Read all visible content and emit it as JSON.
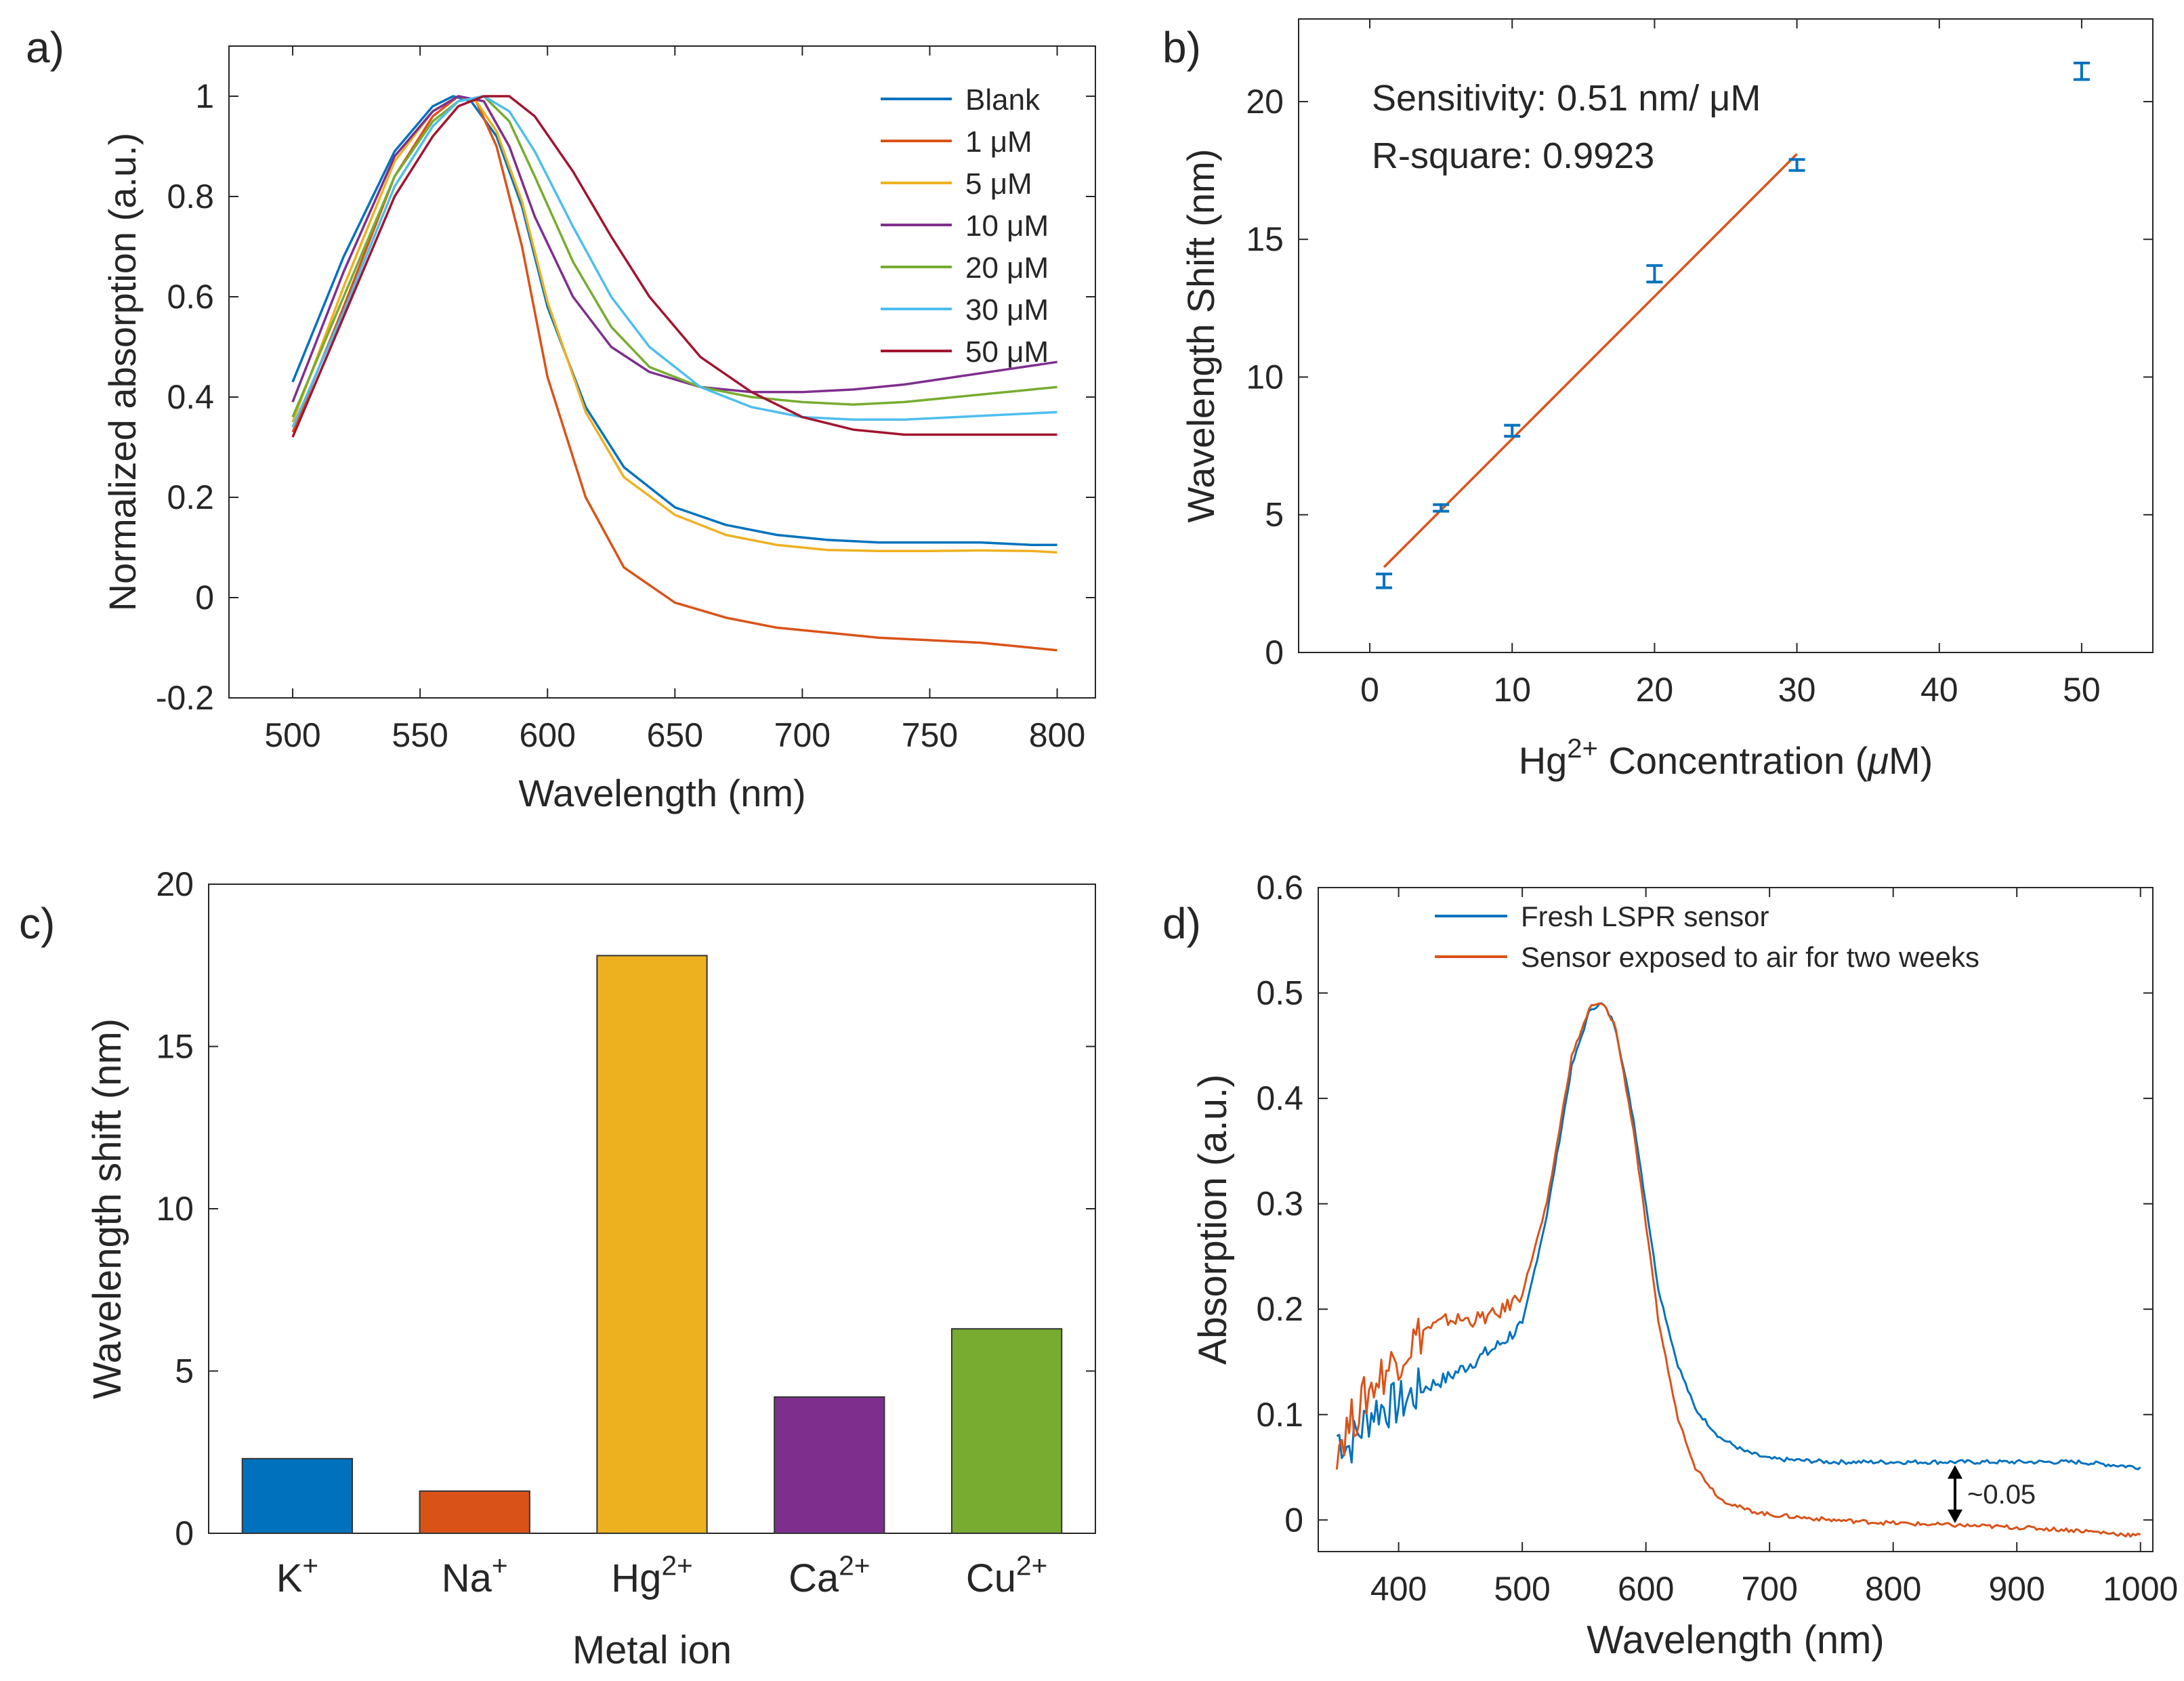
{
  "chart_data": [
    {
      "panel": "a)",
      "type": "line",
      "xlabel": "Wavelength (nm)",
      "ylabel": "Normalized absorption (a.u.)",
      "xlim": [
        475,
        815
      ],
      "ylim": [
        -0.2,
        1.1
      ],
      "xticks": [
        500,
        550,
        600,
        650,
        700,
        750,
        800
      ],
      "yticks": [
        -0.2,
        0,
        0.2,
        0.4,
        0.6,
        0.8,
        1
      ],
      "ytick_labels": [
        "-0.2",
        "0",
        "0.2",
        "0.4",
        "0.6",
        "0.8",
        "1"
      ],
      "grid": false,
      "legend": "top-right",
      "series": [
        {
          "name": "Blank",
          "color": "#0072BD",
          "x": [
            500,
            520,
            540,
            555,
            563,
            570,
            580,
            590,
            600,
            615,
            630,
            650,
            670,
            690,
            710,
            730,
            750,
            770,
            790,
            800
          ],
          "y": [
            0.43,
            0.68,
            0.89,
            0.98,
            1.0,
            0.99,
            0.92,
            0.78,
            0.58,
            0.38,
            0.26,
            0.18,
            0.145,
            0.125,
            0.115,
            0.11,
            0.11,
            0.11,
            0.105,
            0.105
          ]
        },
        {
          "name": "1 μM",
          "color": "#D95319",
          "x": [
            500,
            520,
            540,
            555,
            565,
            572,
            580,
            590,
            600,
            615,
            630,
            650,
            670,
            690,
            710,
            730,
            750,
            770,
            790,
            800
          ],
          "y": [
            0.33,
            0.58,
            0.84,
            0.96,
            1.0,
            0.99,
            0.9,
            0.7,
            0.44,
            0.2,
            0.06,
            -0.01,
            -0.04,
            -0.06,
            -0.07,
            -0.08,
            -0.085,
            -0.09,
            -0.1,
            -0.105
          ]
        },
        {
          "name": "5 μM",
          "color": "#EDB120",
          "x": [
            500,
            520,
            540,
            555,
            565,
            572,
            580,
            590,
            600,
            615,
            630,
            650,
            670,
            690,
            710,
            730,
            750,
            770,
            790,
            800
          ],
          "y": [
            0.35,
            0.62,
            0.87,
            0.97,
            1.0,
            0.99,
            0.93,
            0.79,
            0.59,
            0.37,
            0.24,
            0.165,
            0.125,
            0.105,
            0.095,
            0.093,
            0.093,
            0.094,
            0.093,
            0.09
          ]
        },
        {
          "name": "10 μM",
          "color": "#7E2F8E",
          "x": [
            500,
            520,
            540,
            555,
            565,
            575,
            585,
            595,
            610,
            625,
            640,
            660,
            680,
            700,
            720,
            740,
            760,
            780,
            800
          ],
          "y": [
            0.39,
            0.65,
            0.88,
            0.97,
            1.0,
            0.99,
            0.9,
            0.76,
            0.6,
            0.5,
            0.45,
            0.42,
            0.41,
            0.41,
            0.415,
            0.425,
            0.44,
            0.455,
            0.47
          ]
        },
        {
          "name": "20 μM",
          "color": "#77AC30",
          "x": [
            500,
            520,
            540,
            555,
            565,
            575,
            585,
            595,
            610,
            625,
            640,
            660,
            680,
            700,
            720,
            740,
            760,
            780,
            800
          ],
          "y": [
            0.36,
            0.6,
            0.84,
            0.95,
            0.99,
            1.0,
            0.95,
            0.84,
            0.67,
            0.54,
            0.46,
            0.42,
            0.4,
            0.39,
            0.385,
            0.39,
            0.4,
            0.41,
            0.42
          ]
        },
        {
          "name": "30 μM",
          "color": "#4DBEEE",
          "x": [
            500,
            520,
            540,
            555,
            565,
            575,
            585,
            595,
            610,
            625,
            640,
            660,
            680,
            700,
            720,
            740,
            760,
            780,
            800
          ],
          "y": [
            0.34,
            0.57,
            0.82,
            0.94,
            0.99,
            1.0,
            0.97,
            0.89,
            0.74,
            0.6,
            0.5,
            0.42,
            0.38,
            0.36,
            0.355,
            0.355,
            0.36,
            0.365,
            0.37
          ]
        },
        {
          "name": "50 μM",
          "color": "#A2142F",
          "x": [
            500,
            520,
            540,
            555,
            565,
            575,
            585,
            595,
            610,
            625,
            640,
            660,
            680,
            700,
            720,
            740,
            760,
            780,
            800
          ],
          "y": [
            0.32,
            0.56,
            0.8,
            0.92,
            0.98,
            1.0,
            1.0,
            0.96,
            0.85,
            0.72,
            0.6,
            0.48,
            0.41,
            0.36,
            0.335,
            0.325,
            0.325,
            0.325,
            0.325
          ]
        }
      ]
    },
    {
      "panel": "b)",
      "type": "scatter",
      "xlabel_parts": [
        "Hg",
        "2+",
        " Concentration (",
        "μ",
        "M)"
      ],
      "ylabel": "Wavelength Shift (nm)",
      "xlim": [
        -5,
        55
      ],
      "ylim": [
        0,
        23
      ],
      "xticks": [
        0,
        10,
        20,
        30,
        40,
        50
      ],
      "yticks": [
        0,
        5,
        10,
        15,
        20
      ],
      "grid": false,
      "annotations": [
        "Sensitivity: 0.51 nm/ μM",
        "R-square: 0.9923"
      ],
      "points": [
        {
          "x": 1,
          "y": 2.6,
          "err": 0.25
        },
        {
          "x": 5,
          "y": 5.25,
          "err": 0.12
        },
        {
          "x": 10,
          "y": 8.05,
          "err": 0.2
        },
        {
          "x": 20,
          "y": 13.75,
          "err": 0.3
        },
        {
          "x": 30,
          "y": 17.7,
          "err": 0.2
        },
        {
          "x": 50,
          "y": 21.1,
          "err": 0.3
        }
      ],
      "point_color": "#0072BD",
      "fit": {
        "x": [
          1,
          30
        ],
        "y": [
          3.1,
          18.1
        ],
        "color": "#D95319"
      }
    },
    {
      "panel": "c)",
      "type": "bar",
      "xlabel": "Metal ion",
      "ylabel": "Wavelength shift (nm)",
      "ylim": [
        0,
        20
      ],
      "yticks": [
        0,
        5,
        10,
        15,
        20
      ],
      "categories": [
        {
          "base": "K",
          "sup": "+"
        },
        {
          "base": "Na",
          "sup": "+"
        },
        {
          "base": "Hg",
          "sup": "2+"
        },
        {
          "base": "Ca",
          "sup": "2+"
        },
        {
          "base": "Cu",
          "sup": "2+"
        }
      ],
      "values": [
        2.3,
        1.3,
        17.8,
        4.2,
        6.3
      ],
      "colors": [
        "#0072BD",
        "#D95319",
        "#EDB120",
        "#7E2F8E",
        "#77AC30"
      ]
    },
    {
      "panel": "d)",
      "type": "line",
      "xlabel": "Wavelength (nm)",
      "ylabel": "Absorption (a.u.)",
      "xlim": [
        335,
        1010
      ],
      "ylim": [
        -0.03,
        0.6
      ],
      "xticks": [
        400,
        500,
        600,
        700,
        800,
        900,
        1000
      ],
      "yticks": [
        0,
        0.1,
        0.2,
        0.3,
        0.4,
        0.5,
        0.6
      ],
      "legend": "top-left",
      "annotation": "~0.05",
      "series": [
        {
          "name": "Fresh LSPR sensor",
          "color": "#0072BD",
          "x": [
            350,
            360,
            380,
            400,
            420,
            440,
            460,
            480,
            500,
            520,
            540,
            555,
            565,
            575,
            590,
            600,
            610,
            625,
            640,
            660,
            680,
            700,
            750,
            800,
            850,
            900,
            950,
            1000
          ],
          "y": [
            0.08,
            0.07,
            0.105,
            0.11,
            0.125,
            0.135,
            0.15,
            0.165,
            0.185,
            0.29,
            0.43,
            0.485,
            0.49,
            0.47,
            0.38,
            0.3,
            0.22,
            0.15,
            0.105,
            0.078,
            0.065,
            0.058,
            0.055,
            0.055,
            0.055,
            0.055,
            0.055,
            0.05
          ]
        },
        {
          "name": "Sensor exposed to air for two weeks",
          "color": "#D95319",
          "x": [
            350,
            360,
            380,
            400,
            420,
            440,
            460,
            480,
            500,
            520,
            540,
            555,
            565,
            575,
            590,
            600,
            610,
            625,
            640,
            660,
            680,
            700,
            750,
            800,
            850,
            900,
            950,
            1000
          ],
          "y": [
            0.07,
            0.09,
            0.13,
            0.155,
            0.18,
            0.19,
            0.19,
            0.195,
            0.215,
            0.3,
            0.44,
            0.487,
            0.49,
            0.47,
            0.37,
            0.28,
            0.19,
            0.1,
            0.05,
            0.02,
            0.01,
            0.005,
            0.0,
            -0.003,
            -0.005,
            -0.007,
            -0.01,
            -0.015
          ]
        }
      ]
    }
  ]
}
